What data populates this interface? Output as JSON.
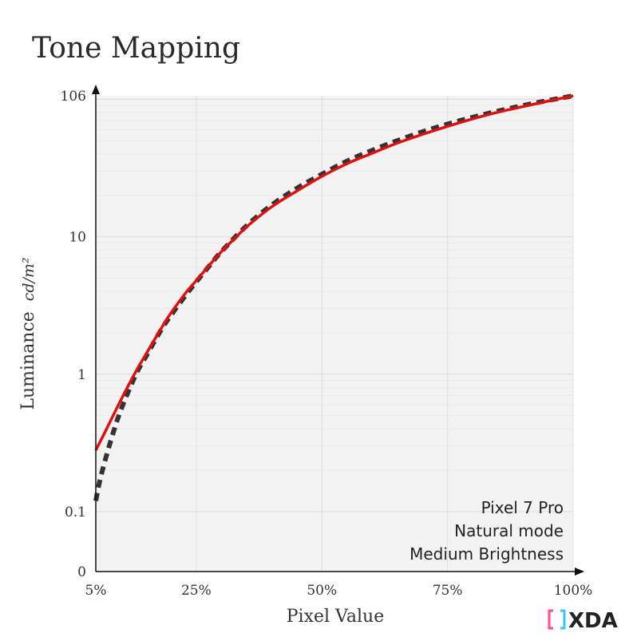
{
  "chart_data": {
    "type": "line",
    "title": "Tone Mapping",
    "xlabel": "Pixel Value",
    "ylabel_text": "Luminance",
    "ylabel_unit": "cd/m²",
    "x_ticks": [
      {
        "value": 5,
        "label": "5%"
      },
      {
        "value": 25,
        "label": "25%"
      },
      {
        "value": 50,
        "label": "50%"
      },
      {
        "value": 75,
        "label": "75%"
      },
      {
        "value": 100,
        "label": "100%"
      }
    ],
    "y_ticks": [
      {
        "value": 0,
        "label": "0"
      },
      {
        "value": 0.1,
        "label": "0.1"
      },
      {
        "value": 1,
        "label": "1"
      },
      {
        "value": 10,
        "label": "10"
      },
      {
        "value": 106,
        "label": "106"
      }
    ],
    "xlim": [
      5,
      100
    ],
    "ylim": [
      0,
      106
    ],
    "y_scale": "log-like (0 at bottom)",
    "grid": true,
    "annotation": [
      "Pixel 7 Pro",
      "Natural mode",
      "Medium Brightness"
    ],
    "series": [
      {
        "style": "solid",
        "color": "#e01010",
        "x": [
          5,
          7,
          10,
          13,
          15,
          18,
          20,
          23,
          25,
          27,
          30,
          33,
          35,
          40,
          45,
          50,
          55,
          60,
          65,
          70,
          75,
          80,
          85,
          90,
          95,
          100
        ],
        "y": [
          0.28,
          0.39,
          0.65,
          1.05,
          1.4,
          2.15,
          2.8,
          3.95,
          4.8,
          5.85,
          7.8,
          10.0,
          11.8,
          16.5,
          21.5,
          27.5,
          34,
          40.5,
          48,
          55.5,
          63.5,
          72,
          80.5,
          88.5,
          97,
          106
        ]
      },
      {
        "style": "dashed",
        "color": "#333333",
        "x": [
          5,
          6,
          8,
          10,
          13,
          15,
          18,
          20,
          23,
          25,
          28,
          30,
          35,
          40,
          45,
          50,
          55,
          60,
          65,
          70,
          75,
          80,
          85,
          90,
          95,
          100
        ],
        "y": [
          0.12,
          0.18,
          0.33,
          0.55,
          1.0,
          1.35,
          2.1,
          2.7,
          3.8,
          4.7,
          6.4,
          7.8,
          12.0,
          17.0,
          22.5,
          28.5,
          35.5,
          42.5,
          50,
          58,
          66,
          74,
          82,
          90,
          98,
          106
        ]
      }
    ]
  },
  "branding": {
    "logo_text": "XDA",
    "logo_colors": [
      "#ff4f8b",
      "#38c8f0",
      "#222222"
    ]
  }
}
